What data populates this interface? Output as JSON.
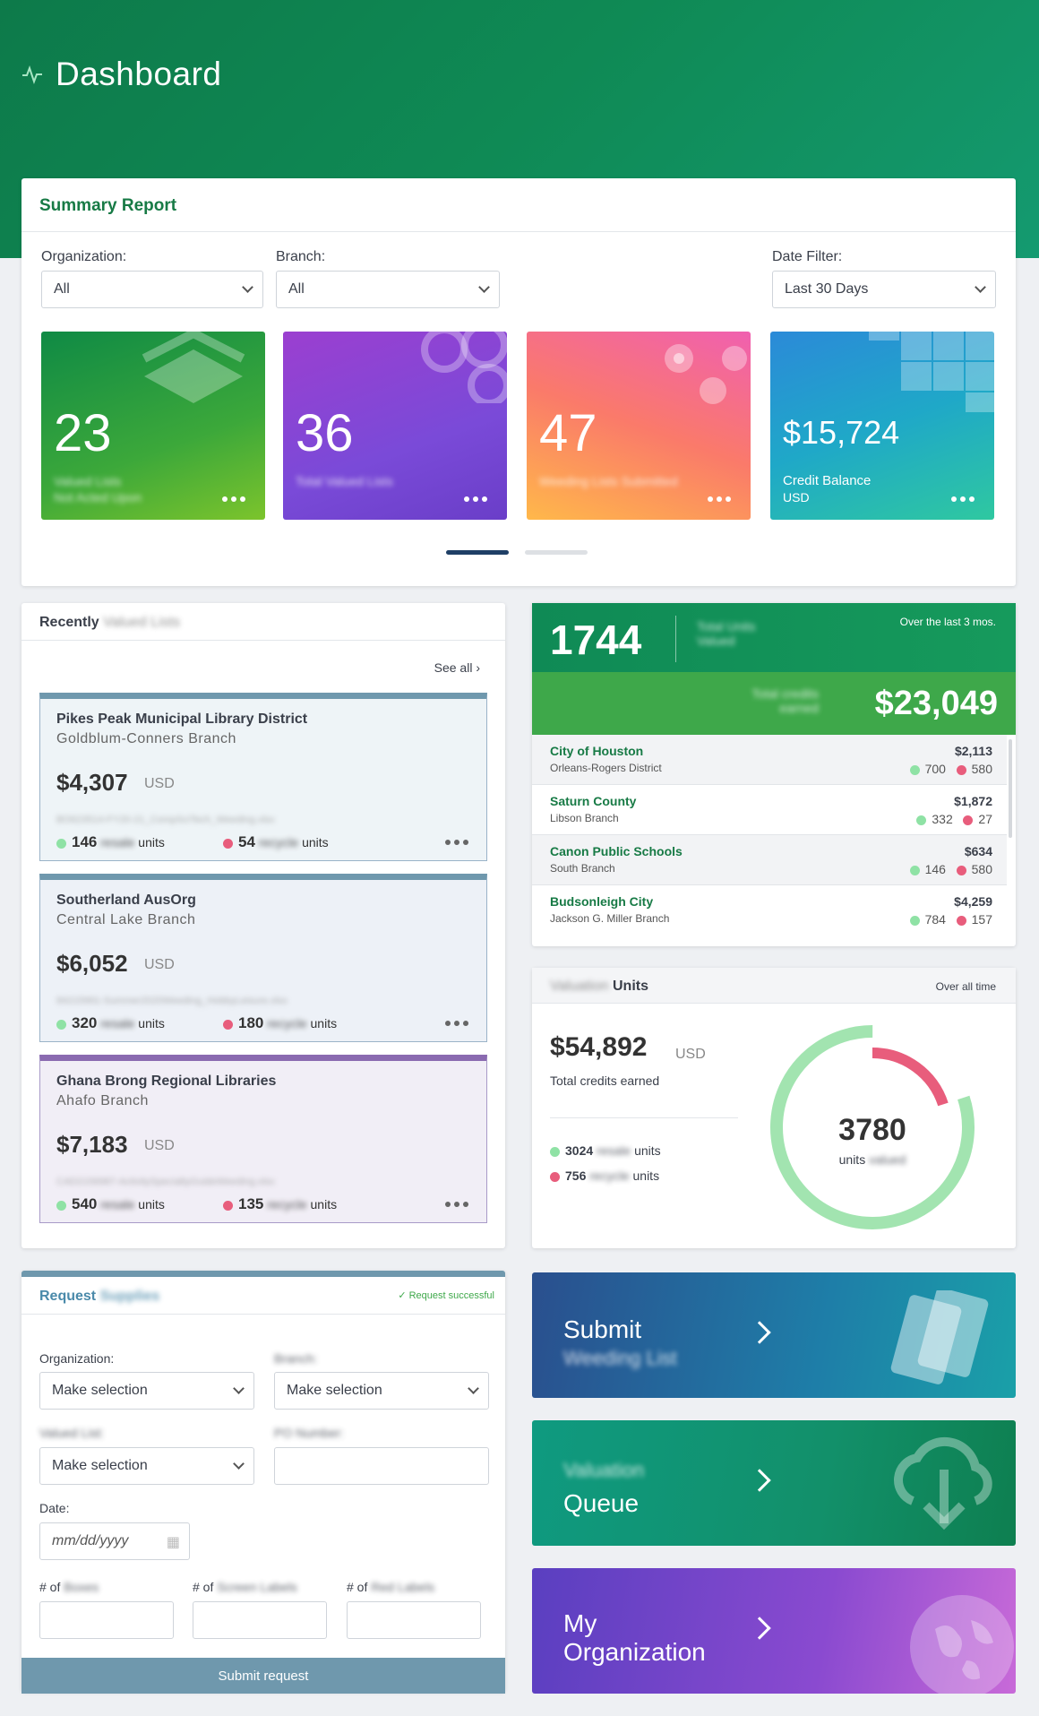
{
  "header": {
    "title": "Dashboard"
  },
  "summary": {
    "title": "Summary Report",
    "filters": {
      "org_label": "Organization:",
      "org_value": "All",
      "branch_label": "Branch:",
      "branch_value": "All",
      "date_label": "Date Filter:",
      "date_value": "Last 30 Days"
    },
    "stats": [
      {
        "value": "23",
        "label1": "Valued Lists",
        "label2": "Not Acted Upon"
      },
      {
        "value": "36",
        "label1": "Total Valued Lists"
      },
      {
        "value": "47",
        "label1": "Weeding Lists Submitted"
      },
      {
        "value": "$15,724",
        "label1": "Credit Balance",
        "label2": "USD"
      }
    ]
  },
  "recent": {
    "title": "Recently",
    "title_blur": "Valued Lists",
    "see_all": "See all",
    "items": [
      {
        "org": "Pikes Peak Municipal Library District",
        "branch": "Goldblum-Conners Branch",
        "amount": "$4,307",
        "currency": "USD",
        "file": "BO623514-FY20-21_CompSciTech_Weeding.xlsx",
        "resale": "146",
        "recycle": "54",
        "resale_word": "resale",
        "recycle_word": "recycle",
        "units": "units"
      },
      {
        "org": "Southerland AusOrg",
        "branch": "Central Lake Branch",
        "amount": "$6,052",
        "currency": "USD",
        "file": "84215991-Summer2020Weeding_HobbyLeisure.xlsx",
        "resale": "320",
        "recycle": "180",
        "resale_word": "resale",
        "recycle_word": "recycle",
        "units": "units"
      },
      {
        "org": "Ghana Brong Regional Libraries",
        "branch": "Ahafo Branch",
        "amount": "$7,183",
        "currency": "USD",
        "file": "CAD2156987-ActivitySpecialtyGuideWeeding.xlsx",
        "resale": "540",
        "recycle": "135",
        "resale_word": "resale",
        "recycle_word": "recycle",
        "units": "units"
      }
    ]
  },
  "totals": {
    "units": "1744",
    "units_label": "Total Units Valued",
    "period": "Over the last 3 mos.",
    "credits_label": "Total credits earned",
    "credits": "$23,049",
    "rows": [
      {
        "name": "City of Houston",
        "sub": "Orleans-Rogers District",
        "amount": "$2,113",
        "green": "700",
        "red": "580"
      },
      {
        "name": "Saturn County",
        "sub": "Libson Branch",
        "amount": "$1,872",
        "green": "332",
        "red": "27"
      },
      {
        "name": "Canon Public Schools",
        "sub": "South Branch",
        "amount": "$634",
        "green": "146",
        "red": "580"
      },
      {
        "name": "Budsonleigh City",
        "sub": "Jackson G. Miller Branch",
        "amount": "$4,259",
        "green": "784",
        "red": "157"
      }
    ]
  },
  "units_card": {
    "title_blur": "Valuation",
    "title": "Units",
    "period": "Over all time",
    "amount": "$54,892",
    "currency": "USD",
    "desc": "Total credits earned",
    "resale": "3024",
    "recycle": "756",
    "resale_word": "resale",
    "recycle_word": "recycle",
    "units_word": "units",
    "total": "3780",
    "total_label": "units",
    "total_label_blur": "valued",
    "chart_data": {
      "type": "pie",
      "categories": [
        "resale",
        "recycle"
      ],
      "values": [
        3024,
        756
      ]
    }
  },
  "request": {
    "title": "Request",
    "title_blur": "Supplies",
    "status": "Request successful",
    "org_label": "Organization:",
    "org_value": "Make selection",
    "branch_label": "Branch:",
    "branch_value": "Make selection",
    "list_label": "Valued List:",
    "list_value": "Make selection",
    "po_label": "PO Number:",
    "date_label": "Date:",
    "date_placeholder": "mm/dd/yyyy",
    "boxes_label": "# of",
    "boxes_blur": "Boxes",
    "labels_label": "# of",
    "labels_blur": "Screen Labels",
    "red_label": "# of",
    "red_blur": "Red Labels",
    "submit": "Submit request"
  },
  "actions": [
    {
      "label1": "Submit",
      "label2": "Weeding List"
    },
    {
      "label0": "Valuation",
      "label1": "Queue"
    },
    {
      "label1": "My",
      "label2": "Organization"
    }
  ],
  "colors": {
    "primary": "#177a45",
    "accent": "#3ea84a",
    "green_dot": "#8fe2a5",
    "red_dot": "#e85d7c"
  }
}
